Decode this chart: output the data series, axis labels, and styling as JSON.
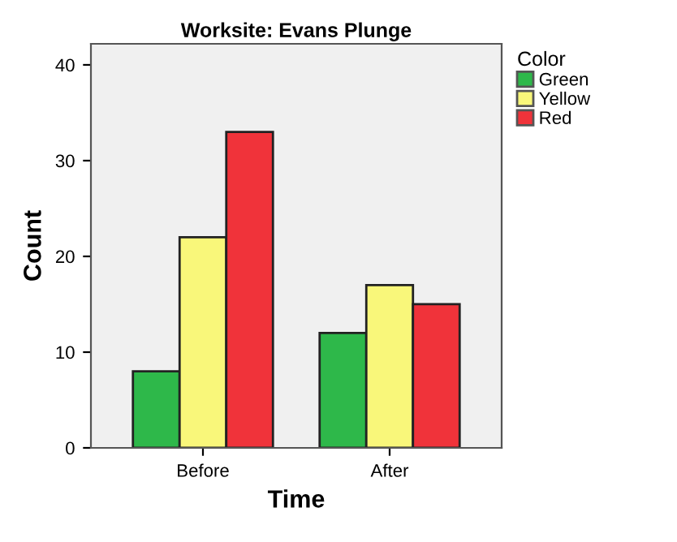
{
  "chart_data": {
    "type": "bar",
    "title": "Worksite: Evans Plunge",
    "xlabel": "Time",
    "ylabel": "Count",
    "legend_title": "Color",
    "categories": [
      "Before",
      "After"
    ],
    "series": [
      {
        "name": "Green",
        "color": "#2eb84a",
        "values": [
          8,
          12
        ]
      },
      {
        "name": "Yellow",
        "color": "#f9f77a",
        "values": [
          22,
          17
        ]
      },
      {
        "name": "Red",
        "color": "#f0333a",
        "values": [
          33,
          15
        ]
      }
    ],
    "ylim": [
      0,
      42.2
    ],
    "yticks": [
      0,
      10,
      20,
      30,
      40
    ],
    "grid": false,
    "legend": "top right"
  }
}
